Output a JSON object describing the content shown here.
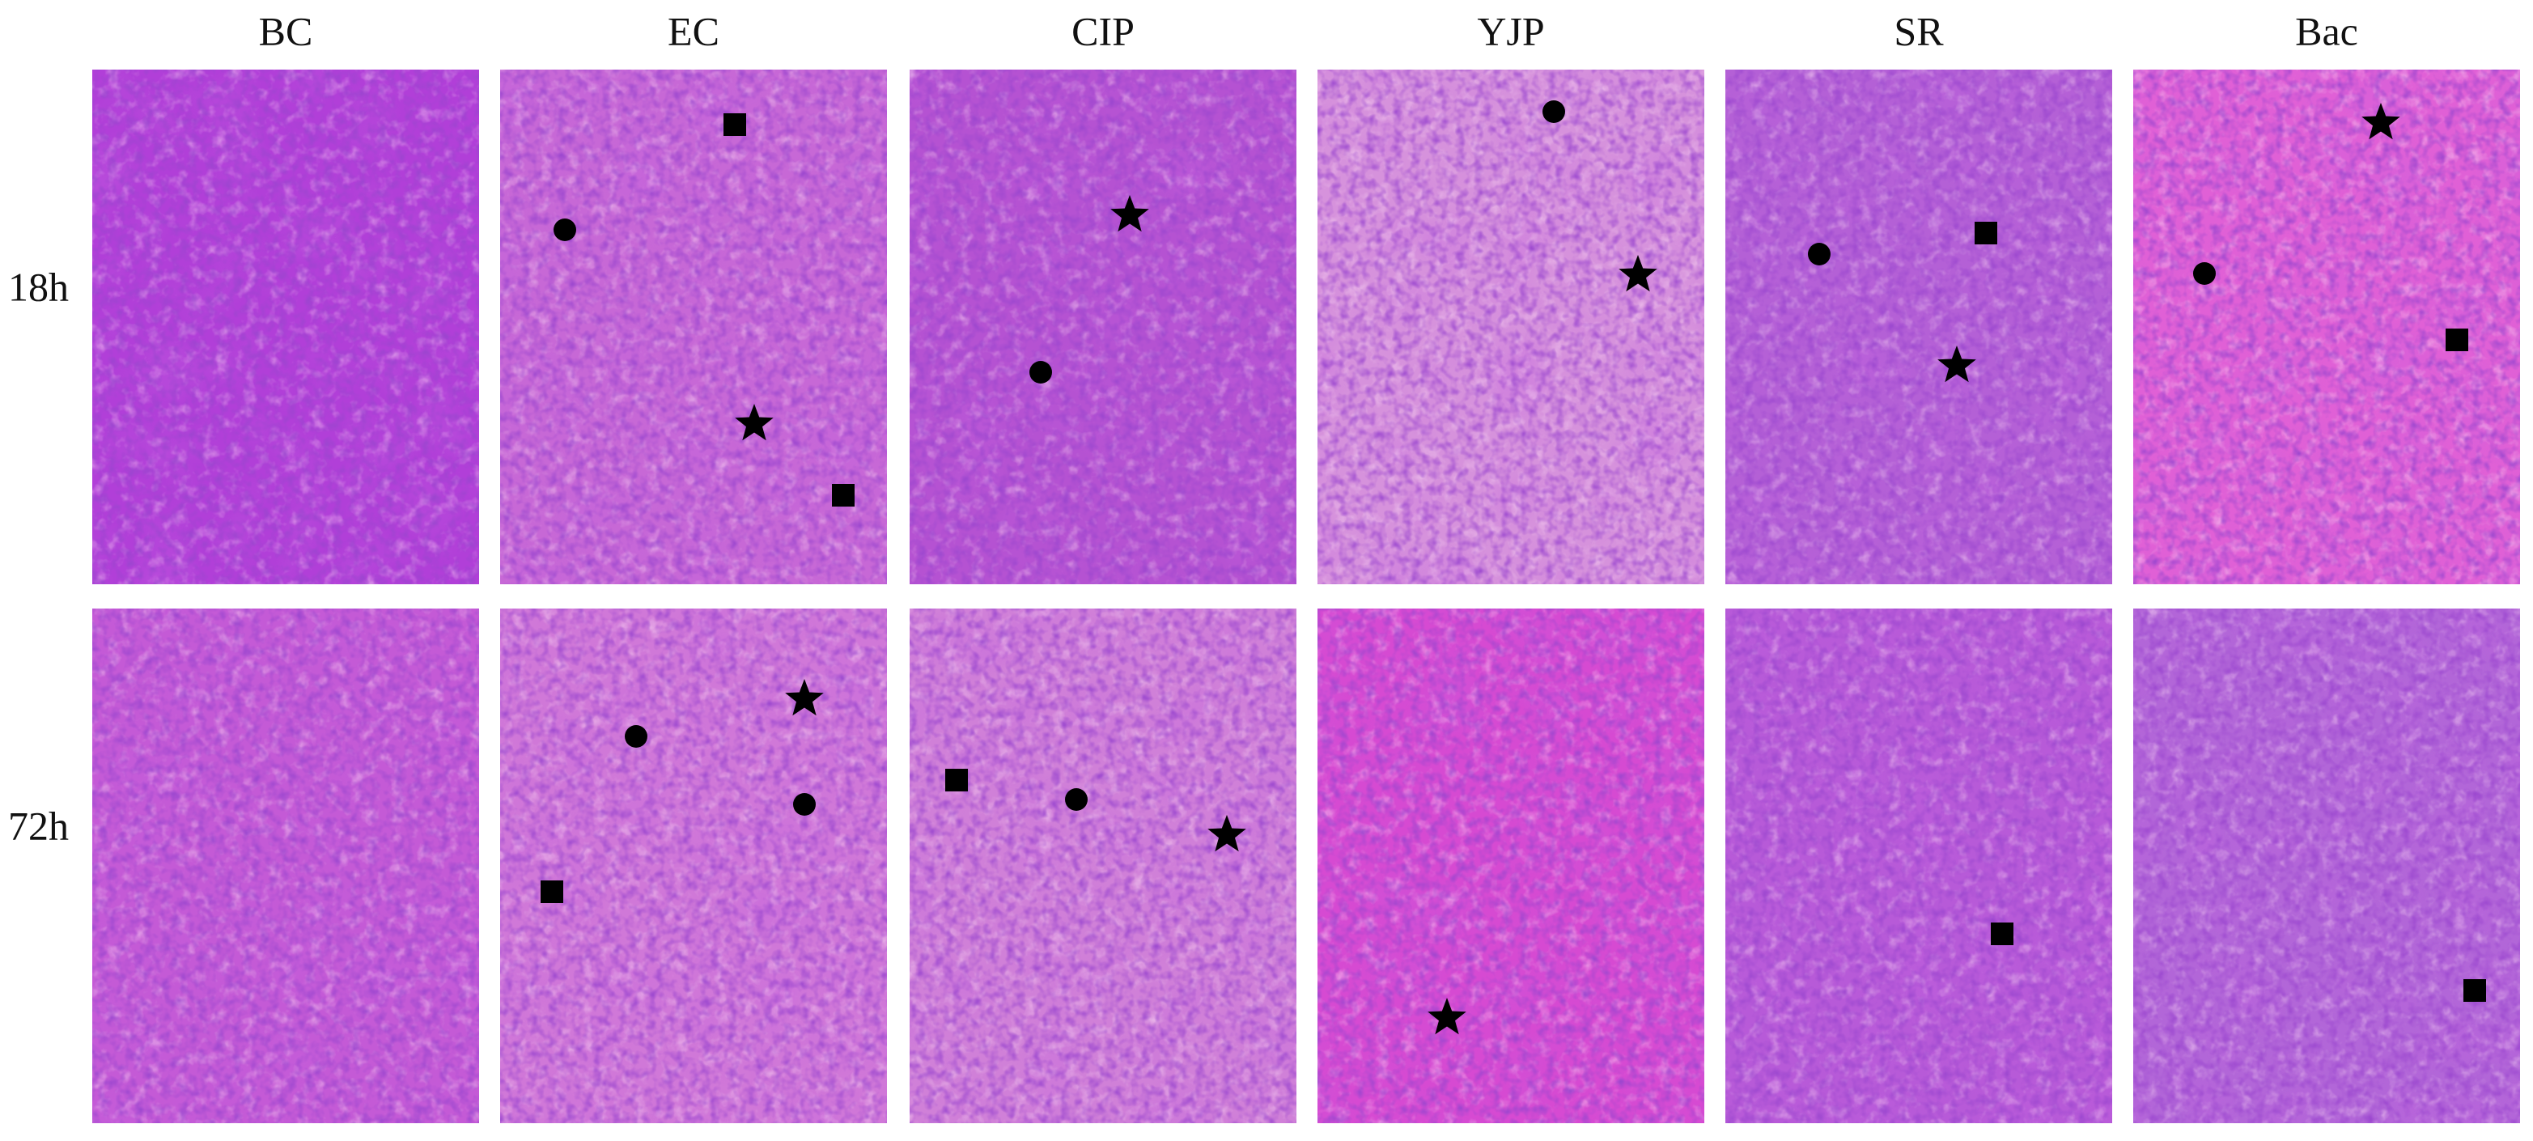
{
  "columns": [
    "BC",
    "EC",
    "CIP",
    "YJP",
    "SR",
    "Bac"
  ],
  "rows": [
    "18h",
    "72h"
  ]
}
